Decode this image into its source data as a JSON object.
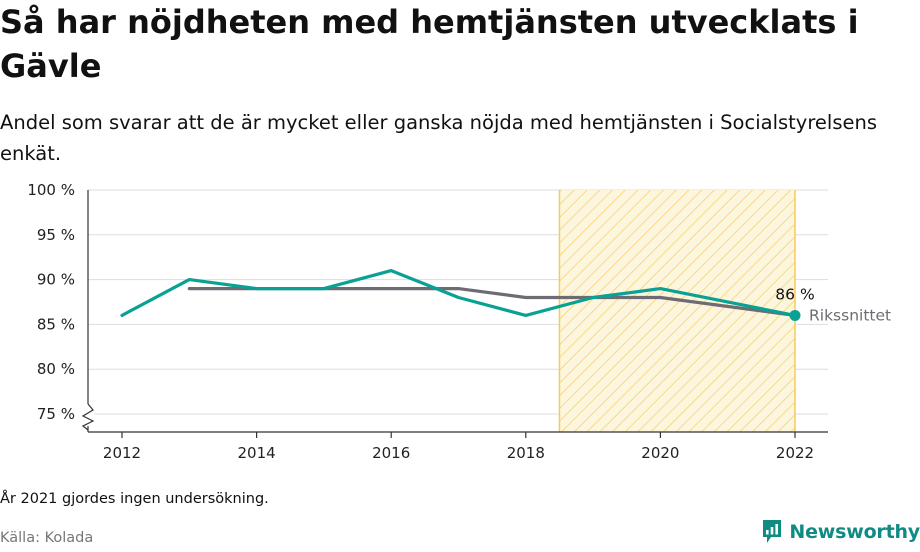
{
  "title": "Så har nöjdheten med hemtjänsten utvecklats i Gävle",
  "subtitle": "Andel som svarar att de är mycket eller ganska nöjda med hemtjänsten i Socialstyrelsens enkät.",
  "footnote": "År 2021 gjordes ingen undersökning.",
  "source": "Källa: Kolada",
  "brand": {
    "name": "Newsworthy",
    "logo_icon": "newsworthy-logo-icon"
  },
  "colors": {
    "gavle": "#0aa195",
    "riksnittet": "#6f6b73",
    "highlight_stroke": "#f6cc57",
    "highlight_fill": "#fdf3d4",
    "grid": "#dddddd",
    "axis": "#333333",
    "brand": "#0f8b84"
  },
  "chart_data": {
    "type": "line",
    "x_ticks": [
      2012,
      2014,
      2016,
      2018,
      2020,
      2022
    ],
    "y_ticks": [
      "100 %",
      "95 %",
      "90 %",
      "85 %",
      "80 %",
      "75 %"
    ],
    "y_tick_values": [
      100,
      95,
      90,
      85,
      80,
      75
    ],
    "ylim": [
      75,
      100
    ],
    "xlim": [
      2012,
      2022
    ],
    "y_axis_broken": true,
    "grid": true,
    "highlight_range": [
      2018.5,
      2022
    ],
    "series": [
      {
        "name": "",
        "color_key": "gavle",
        "points": [
          [
            2012,
            86
          ],
          [
            2013,
            90
          ],
          [
            2014,
            89
          ],
          [
            2015,
            89
          ],
          [
            2016,
            91
          ],
          [
            2017,
            88
          ],
          [
            2018,
            86
          ],
          [
            2019,
            88
          ],
          [
            2020,
            89
          ],
          [
            2022,
            86
          ]
        ],
        "end_label": "86 %"
      },
      {
        "name": "Rikssnittet",
        "color_key": "riksnittet",
        "points": [
          [
            2013,
            89
          ],
          [
            2014,
            89
          ],
          [
            2015,
            89
          ],
          [
            2016,
            89
          ],
          [
            2017,
            89
          ],
          [
            2018,
            88
          ],
          [
            2019,
            88
          ],
          [
            2020,
            88
          ],
          [
            2022,
            86
          ]
        ]
      }
    ]
  }
}
